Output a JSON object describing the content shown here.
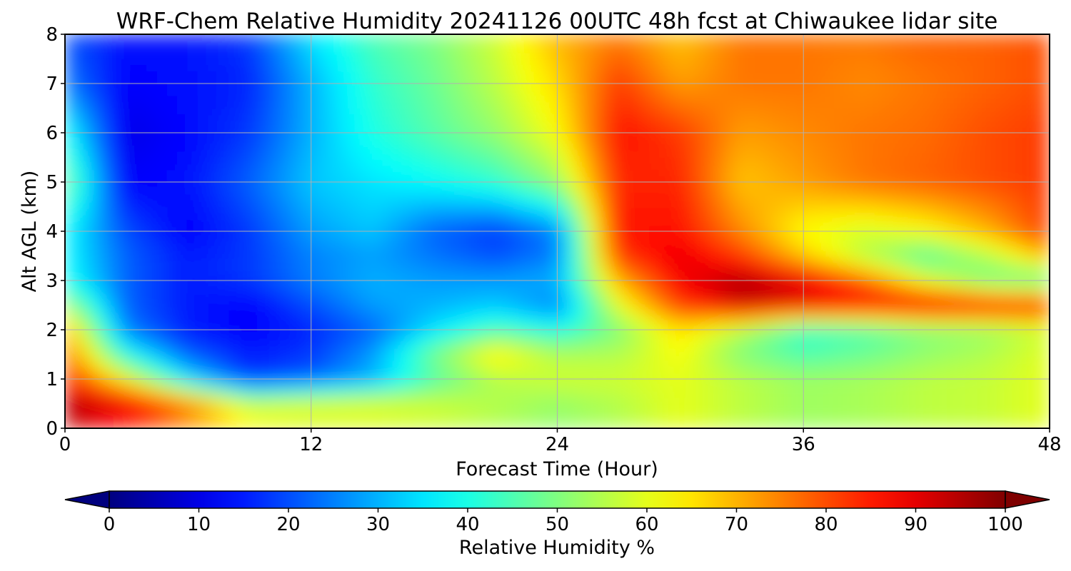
{
  "chart_data": {
    "type": "heatmap",
    "title": "WRF-Chem Relative Humidity 20241126 00UTC 48h fcst at Chiwaukee lidar site",
    "xlabel": "Forecast Time (Hour)",
    "ylabel": "Alt AGL (km)",
    "xlim": [
      0,
      48
    ],
    "ylim": [
      0,
      8
    ],
    "xticks": [
      0,
      12,
      24,
      36,
      48
    ],
    "yticks": [
      0,
      1,
      2,
      3,
      4,
      5,
      6,
      7,
      8
    ],
    "grid": true,
    "colormap": "jet",
    "colorbar": {
      "label": "Relative Humidity %",
      "range": [
        0,
        100
      ],
      "ticks": [
        0,
        10,
        20,
        30,
        40,
        50,
        60,
        70,
        80,
        90,
        100
      ],
      "extend": "both",
      "orientation": "horizontal"
    },
    "x": [
      0,
      3,
      6,
      9,
      12,
      15,
      18,
      21,
      24,
      27,
      30,
      33,
      36,
      39,
      42,
      45,
      48
    ],
    "y": [
      0,
      0.5,
      1,
      1.5,
      2,
      2.5,
      3,
      3.5,
      4,
      5,
      6,
      7,
      8
    ],
    "z": [
      [
        92,
        84,
        72,
        62,
        58,
        58,
        57,
        55,
        52,
        55,
        60,
        56,
        53,
        54,
        56,
        57,
        60
      ],
      [
        96,
        90,
        76,
        58,
        60,
        60,
        58,
        55,
        52,
        55,
        60,
        56,
        53,
        54,
        56,
        57,
        60
      ],
      [
        85,
        62,
        35,
        18,
        22,
        30,
        45,
        55,
        58,
        58,
        60,
        56,
        53,
        54,
        56,
        57,
        60
      ],
      [
        78,
        40,
        22,
        15,
        18,
        28,
        50,
        65,
        55,
        55,
        62,
        50,
        45,
        48,
        52,
        55,
        60
      ],
      [
        72,
        25,
        15,
        12,
        16,
        22,
        35,
        45,
        40,
        50,
        65,
        55,
        42,
        45,
        50,
        52,
        58
      ],
      [
        55,
        22,
        15,
        12,
        20,
        28,
        30,
        32,
        25,
        60,
        82,
        92,
        90,
        88,
        90,
        88,
        85
      ],
      [
        40,
        22,
        15,
        18,
        25,
        30,
        28,
        28,
        30,
        70,
        88,
        96,
        90,
        78,
        60,
        48,
        45
      ],
      [
        38,
        22,
        15,
        18,
        25,
        28,
        24,
        20,
        25,
        82,
        90,
        82,
        68,
        55,
        45,
        55,
        70
      ],
      [
        38,
        20,
        12,
        18,
        28,
        32,
        22,
        18,
        25,
        86,
        86,
        74,
        62,
        58,
        62,
        70,
        82
      ],
      [
        50,
        12,
        14,
        22,
        32,
        35,
        38,
        42,
        52,
        84,
        84,
        68,
        72,
        76,
        78,
        80,
        82
      ],
      [
        40,
        10,
        13,
        18,
        30,
        40,
        46,
        52,
        62,
        86,
        82,
        72,
        74,
        76,
        77,
        80,
        82
      ],
      [
        25,
        12,
        14,
        16,
        30,
        42,
        48,
        56,
        66,
        82,
        72,
        76,
        76,
        74,
        76,
        78,
        80
      ],
      [
        20,
        14,
        14,
        18,
        35,
        45,
        50,
        58,
        70,
        75,
        68,
        76,
        76,
        76,
        78,
        78,
        80
      ]
    ]
  }
}
